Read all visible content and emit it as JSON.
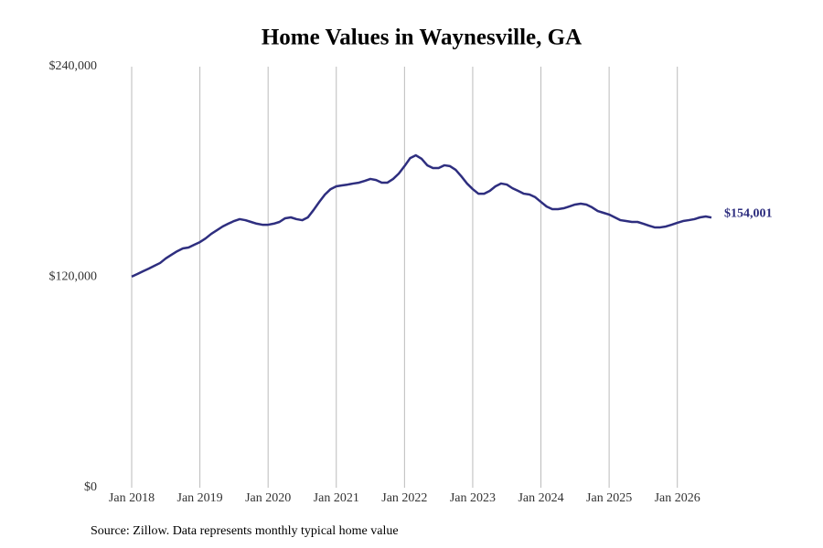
{
  "chart_data": {
    "type": "line",
    "title": "Home Values in Waynesville, GA",
    "source": "Source: Zillow. Data represents monthly typical home value",
    "x": [
      "2018-01",
      "2018-02",
      "2018-03",
      "2018-04",
      "2018-05",
      "2018-06",
      "2018-07",
      "2018-08",
      "2018-09",
      "2018-10",
      "2018-11",
      "2018-12",
      "2019-01",
      "2019-02",
      "2019-03",
      "2019-04",
      "2019-05",
      "2019-06",
      "2019-07",
      "2019-08",
      "2019-09",
      "2019-10",
      "2019-11",
      "2019-12",
      "2020-01",
      "2020-02",
      "2020-03",
      "2020-04",
      "2020-05",
      "2020-06",
      "2020-07",
      "2020-08",
      "2020-09",
      "2020-10",
      "2020-11",
      "2020-12",
      "2021-01",
      "2021-02",
      "2021-03",
      "2021-04",
      "2021-05",
      "2021-06",
      "2021-07",
      "2021-08",
      "2021-09",
      "2021-10",
      "2021-11",
      "2021-12",
      "2022-01",
      "2022-02",
      "2022-03",
      "2022-04",
      "2022-05",
      "2022-06",
      "2022-07",
      "2022-08",
      "2022-09",
      "2022-10",
      "2022-11",
      "2022-12",
      "2023-01",
      "2023-02",
      "2023-03",
      "2023-04",
      "2023-05",
      "2023-06",
      "2023-07",
      "2023-08",
      "2023-09",
      "2023-10",
      "2023-11",
      "2023-12",
      "2024-01",
      "2024-02",
      "2024-03",
      "2024-04",
      "2024-05",
      "2024-06",
      "2024-07",
      "2024-08",
      "2024-09",
      "2024-10",
      "2024-11",
      "2024-12",
      "2025-01",
      "2025-02",
      "2025-03",
      "2025-04",
      "2025-05",
      "2025-06",
      "2025-07",
      "2025-08",
      "2025-09",
      "2025-10",
      "2025-11",
      "2025-12",
      "2026-01",
      "2026-02",
      "2026-03",
      "2026-04",
      "2026-05",
      "2026-06",
      "2026-07"
    ],
    "series": [
      {
        "name": "Home value",
        "color": "#2e2e7f",
        "values": [
          120300,
          121800,
          123400,
          124900,
          126500,
          128100,
          130700,
          132800,
          134800,
          136400,
          136900,
          138500,
          140000,
          142100,
          144700,
          146800,
          148900,
          150500,
          152000,
          153100,
          152500,
          151500,
          150500,
          149900,
          149900,
          150500,
          151500,
          153600,
          154100,
          153100,
          152500,
          154100,
          158300,
          162900,
          167100,
          170200,
          171800,
          172300,
          172800,
          173400,
          173900,
          174900,
          176000,
          175400,
          173900,
          173900,
          176000,
          179100,
          183300,
          187900,
          189500,
          187500,
          183800,
          182200,
          182200,
          183800,
          183300,
          181200,
          177500,
          173400,
          170200,
          167600,
          167600,
          169200,
          171800,
          173400,
          172800,
          170700,
          169200,
          167600,
          167100,
          165600,
          162900,
          160300,
          158800,
          158800,
          159300,
          160300,
          161400,
          161900,
          161400,
          159800,
          157700,
          156700,
          155700,
          154100,
          152500,
          152000,
          151500,
          151500,
          150500,
          149400,
          148400,
          148400,
          148900,
          149900,
          151000,
          152000,
          152500,
          153100,
          154100,
          154600,
          154001
        ],
        "value_labels": [
          null,
          null,
          null,
          null,
          null,
          null,
          null,
          null,
          null,
          null,
          null,
          null,
          null,
          null,
          null,
          null,
          null,
          null,
          null,
          null,
          null,
          null,
          null,
          null,
          null,
          null,
          null,
          null,
          null,
          null,
          null,
          null,
          null,
          null,
          null,
          null,
          null,
          null,
          null,
          null,
          null,
          null,
          null,
          null,
          null,
          null,
          null,
          null,
          null,
          null,
          null,
          null,
          null,
          null,
          null,
          null,
          null,
          null,
          null,
          null,
          null,
          null,
          null,
          null,
          null,
          null,
          null,
          null,
          null,
          null,
          null,
          null,
          null,
          null,
          null,
          null,
          null,
          null,
          null,
          null,
          null,
          null,
          null,
          null,
          null,
          null,
          null,
          null,
          null,
          null,
          null,
          null,
          null,
          null,
          null,
          null,
          null,
          null,
          null,
          null,
          null,
          null,
          "$154,001"
        ]
      }
    ],
    "xlim": [
      "2018-01",
      "2026-07"
    ],
    "xticks": [
      {
        "value": "2018-01",
        "label": "Jan 2018"
      },
      {
        "value": "2019-01",
        "label": "Jan 2019"
      },
      {
        "value": "2020-01",
        "label": "Jan 2020"
      },
      {
        "value": "2021-01",
        "label": "Jan 2021"
      },
      {
        "value": "2022-01",
        "label": "Jan 2022"
      },
      {
        "value": "2023-01",
        "label": "Jan 2023"
      },
      {
        "value": "2024-01",
        "label": "Jan 2024"
      },
      {
        "value": "2025-01",
        "label": "Jan 2025"
      },
      {
        "value": "2026-01",
        "label": "Jan 2026"
      }
    ],
    "ylim": [
      0,
      240000
    ],
    "yticks": [
      {
        "value": 0,
        "label": "$0"
      },
      {
        "value": 120000,
        "label": "$120,000"
      },
      {
        "value": 240000,
        "label": "$240,000"
      }
    ],
    "grid": "x"
  }
}
